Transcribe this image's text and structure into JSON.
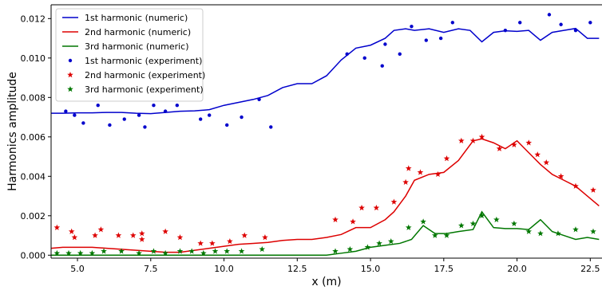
{
  "chart_data": {
    "type": "line",
    "title": "",
    "xlabel": "x (m)",
    "ylabel": "Harmonics amplitude",
    "xlim": [
      4.1,
      22.9
    ],
    "ylim": [
      -0.00015,
      0.0127
    ],
    "x_ticks": [
      5.0,
      7.5,
      10.0,
      12.5,
      15.0,
      17.5,
      20.0,
      22.5
    ],
    "x_tick_labels": [
      "5.0",
      "7.5",
      "10.0",
      "12.5",
      "15.0",
      "17.5",
      "20.0",
      "22.5"
    ],
    "y_ticks": [
      0.0,
      0.002,
      0.004,
      0.006,
      0.008,
      0.01,
      0.012
    ],
    "y_tick_labels": [
      "0.000",
      "0.002",
      "0.004",
      "0.006",
      "0.008",
      "0.010",
      "0.012"
    ],
    "legend_position": "top-left",
    "series": [
      {
        "name": "1st harmonic (numeric)",
        "kind": "line",
        "color": "#0000cc",
        "x": [
          4.1,
          4.5,
          5.0,
          5.5,
          6.0,
          6.5,
          7.0,
          7.5,
          8.0,
          8.5,
          9.0,
          9.5,
          10.0,
          10.5,
          11.0,
          11.5,
          12.0,
          12.5,
          13.0,
          13.5,
          14.0,
          14.5,
          15.0,
          15.5,
          15.8,
          16.2,
          16.5,
          17.0,
          17.5,
          18.0,
          18.4,
          18.8,
          19.2,
          19.6,
          20.0,
          20.4,
          20.8,
          21.2,
          21.6,
          22.0,
          22.4,
          22.8
        ],
        "y": [
          0.0072,
          0.0072,
          0.00722,
          0.00722,
          0.00724,
          0.00724,
          0.0072,
          0.00718,
          0.00724,
          0.0073,
          0.00732,
          0.00738,
          0.0076,
          0.00775,
          0.0079,
          0.0081,
          0.0085,
          0.0087,
          0.0087,
          0.0091,
          0.0099,
          0.0105,
          0.01065,
          0.011,
          0.0114,
          0.01148,
          0.0114,
          0.01148,
          0.0113,
          0.01148,
          0.0114,
          0.01082,
          0.0113,
          0.01138,
          0.01135,
          0.0114,
          0.0109,
          0.0113,
          0.0114,
          0.0115,
          0.011,
          0.011
        ]
      },
      {
        "name": "2nd harmonic (numeric)",
        "kind": "line",
        "color": "#dd0000",
        "x": [
          4.1,
          4.5,
          5.0,
          5.5,
          6.0,
          6.5,
          7.0,
          7.5,
          8.0,
          8.5,
          9.0,
          9.5,
          10.0,
          10.5,
          11.0,
          11.5,
          12.0,
          12.5,
          13.0,
          13.5,
          14.0,
          14.5,
          15.0,
          15.5,
          15.8,
          16.2,
          16.5,
          17.0,
          17.5,
          18.0,
          18.5,
          18.8,
          19.2,
          19.6,
          20.0,
          20.4,
          20.8,
          21.2,
          21.6,
          22.0,
          22.4,
          22.8
        ],
        "y": [
          0.00035,
          0.0004,
          0.0004,
          0.0004,
          0.00035,
          0.0003,
          0.00025,
          0.0002,
          0.00015,
          0.00015,
          0.00025,
          0.00035,
          0.00045,
          0.00055,
          0.0006,
          0.00065,
          0.00075,
          0.0008,
          0.0008,
          0.0009,
          0.00105,
          0.0014,
          0.0014,
          0.0018,
          0.0022,
          0.003,
          0.0038,
          0.0041,
          0.0042,
          0.0048,
          0.0058,
          0.0059,
          0.0057,
          0.0054,
          0.0058,
          0.0052,
          0.0046,
          0.0041,
          0.0038,
          0.0035,
          0.003,
          0.0025
        ]
      },
      {
        "name": "3rd harmonic (numeric)",
        "kind": "line",
        "color": "#007700",
        "x": [
          4.1,
          4.5,
          5.0,
          5.5,
          6.0,
          6.5,
          7.0,
          7.5,
          8.0,
          8.5,
          9.0,
          9.5,
          10.0,
          10.5,
          11.0,
          11.5,
          12.0,
          12.5,
          13.0,
          13.5,
          14.0,
          14.5,
          15.0,
          15.5,
          16.0,
          16.4,
          16.8,
          17.2,
          17.6,
          18.0,
          18.5,
          18.8,
          19.2,
          19.6,
          20.0,
          20.4,
          20.8,
          21.2,
          21.6,
          22.0,
          22.4,
          22.8
        ],
        "y": [
          0.0,
          0.0,
          0.0,
          0.0,
          0.0,
          0.0,
          0.0,
          0.0,
          0.0,
          0.0,
          0.0,
          0.0,
          0.0,
          0.0,
          0.0,
          0.0,
          0.0,
          0.0,
          0.0,
          0.0,
          0.0001,
          0.0002,
          0.0004,
          0.0005,
          0.0006,
          0.0008,
          0.0015,
          0.0011,
          0.0011,
          0.0012,
          0.0013,
          0.0022,
          0.0014,
          0.00135,
          0.00135,
          0.0013,
          0.0018,
          0.0012,
          0.001,
          0.0008,
          0.0009,
          0.0008
        ]
      },
      {
        "name": "1st harmonic (experiment)",
        "kind": "scatter",
        "marker": "dot",
        "color": "#0000cc",
        "x": [
          4.6,
          4.9,
          5.2,
          5.7,
          6.1,
          6.6,
          7.1,
          7.3,
          7.6,
          8.0,
          8.4,
          9.2,
          9.5,
          10.1,
          10.6,
          11.2,
          11.6,
          14.2,
          14.8,
          15.4,
          15.5,
          16.0,
          16.4,
          16.9,
          17.4,
          17.8,
          19.6,
          20.1,
          21.1,
          21.5,
          22.0,
          22.5
        ],
        "y": [
          0.0073,
          0.0071,
          0.0067,
          0.0076,
          0.0066,
          0.0069,
          0.0071,
          0.0065,
          0.0076,
          0.0073,
          0.0076,
          0.0069,
          0.0071,
          0.0066,
          0.007,
          0.0079,
          0.0065,
          0.0102,
          0.01,
          0.0096,
          0.0107,
          0.0102,
          0.0116,
          0.0109,
          0.011,
          0.0118,
          0.0114,
          0.0118,
          0.0122,
          0.0117,
          0.0114,
          0.0118
        ]
      },
      {
        "name": "2nd harmonic (experiment)",
        "kind": "scatter",
        "marker": "star",
        "color": "#dd0000",
        "x": [
          4.3,
          4.8,
          4.9,
          5.6,
          5.8,
          6.4,
          6.9,
          7.2,
          7.2,
          8.0,
          8.5,
          9.2,
          9.6,
          10.2,
          10.7,
          11.4,
          13.8,
          14.4,
          14.7,
          15.2,
          15.8,
          16.2,
          16.3,
          16.7,
          17.3,
          17.6,
          18.1,
          18.5,
          18.8,
          19.4,
          19.9,
          20.4,
          20.7,
          21.0,
          21.5,
          22.0,
          22.6
        ],
        "y": [
          0.0014,
          0.0012,
          0.0009,
          0.001,
          0.0013,
          0.001,
          0.001,
          0.0011,
          0.0008,
          0.0012,
          0.0009,
          0.0006,
          0.0006,
          0.0007,
          0.001,
          0.0009,
          0.0018,
          0.0017,
          0.0024,
          0.0024,
          0.0027,
          0.0037,
          0.0044,
          0.0042,
          0.0041,
          0.0049,
          0.0058,
          0.0058,
          0.006,
          0.0054,
          0.0056,
          0.0057,
          0.0051,
          0.0047,
          0.004,
          0.0035,
          0.0033
        ]
      },
      {
        "name": "3rd harmonic (experiment)",
        "kind": "scatter",
        "marker": "star",
        "color": "#007700",
        "x": [
          4.3,
          4.7,
          5.1,
          5.5,
          5.9,
          6.5,
          7.1,
          7.6,
          8.0,
          8.5,
          8.9,
          9.3,
          9.7,
          10.1,
          10.6,
          11.3,
          13.8,
          14.3,
          14.9,
          15.3,
          15.7,
          16.3,
          16.8,
          17.2,
          17.6,
          18.1,
          18.5,
          18.8,
          19.3,
          19.9,
          20.4,
          20.8,
          21.4,
          22.0,
          22.6
        ],
        "y": [
          0.0001,
          0.0001,
          0.0001,
          0.0001,
          0.0002,
          0.0002,
          0.0001,
          0.0002,
          0.0001,
          0.0002,
          0.0002,
          0.0001,
          0.0002,
          0.0002,
          0.0002,
          0.0003,
          0.0002,
          0.0003,
          0.0004,
          0.0006,
          0.0007,
          0.0014,
          0.0017,
          0.001,
          0.001,
          0.0015,
          0.0016,
          0.002,
          0.0018,
          0.0016,
          0.0012,
          0.0011,
          0.0011,
          0.0013,
          0.0012
        ]
      }
    ]
  }
}
